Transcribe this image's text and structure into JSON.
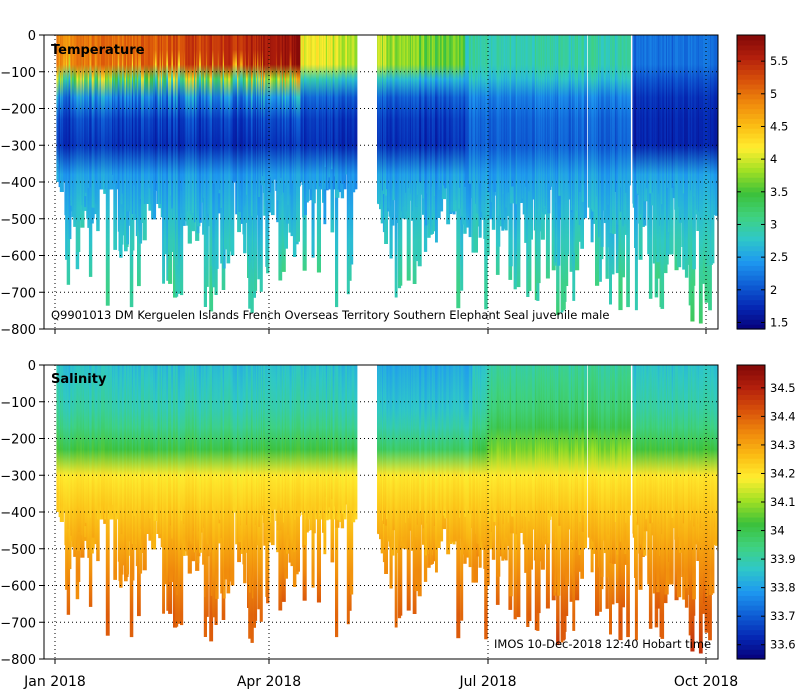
{
  "chart_data": [
    {
      "type": "heatmap",
      "title": "Temperature",
      "annotation": "Q9901013 DM Kerguelen Islands French Overseas Territory Southern Elephant Seal juvenile male",
      "ylim": [
        -800,
        0
      ],
      "yticks": [
        0,
        -100,
        -200,
        -300,
        -400,
        -500,
        -600,
        -700,
        -800
      ],
      "ytick_labels": [
        "0",
        "−100",
        "−200",
        "−300",
        "−400",
        "−500",
        "−600",
        "−700",
        "−800"
      ],
      "colorbar": {
        "range": [
          1.4,
          5.9
        ],
        "ticks": [
          1.5,
          2,
          2.5,
          3,
          3.5,
          4,
          4.5,
          5,
          5.5
        ],
        "tick_labels": [
          "1.5",
          "2",
          "2.5",
          "3",
          "3.5",
          "4",
          "4.5",
          "5",
          "5.5"
        ]
      },
      "profile_gaps": [
        [
          1.04,
          1.06
        ],
        [
          1.31,
          1.33
        ],
        [
          1.55,
          1.57
        ],
        [
          1.75,
          1.77
        ],
        [
          2.05,
          2.07
        ],
        [
          2.28,
          2.3
        ],
        [
          2.52,
          2.54
        ],
        [
          2.75,
          2.76
        ],
        [
          3.08,
          3.1
        ],
        [
          3.41,
          3.45
        ],
        [
          3.62,
          3.64
        ],
        [
          3.8,
          3.82
        ],
        [
          4.2,
          4.5
        ],
        [
          4.72,
          4.74
        ],
        [
          5.08,
          5.1
        ],
        [
          5.3,
          5.32
        ],
        [
          5.55,
          5.57
        ],
        [
          5.72,
          5.74
        ],
        [
          6.1,
          6.12
        ],
        [
          6.35,
          6.37
        ],
        [
          6.6,
          6.62
        ],
        [
          6.85,
          6.87
        ],
        [
          7.1,
          7.12
        ],
        [
          7.35,
          7.37
        ],
        [
          7.58,
          7.6
        ],
        [
          7.8,
          7.82
        ],
        [
          7.95,
          8.0
        ],
        [
          8.25,
          8.27
        ],
        [
          8.6,
          8.62
        ],
        [
          8.85,
          8.87
        ],
        [
          9.1,
          9.12
        ]
      ],
      "profile_depth_steps": [
        [
          0.0,
          400
        ],
        [
          0.15,
          580
        ],
        [
          0.35,
          500
        ],
        [
          0.6,
          420
        ],
        [
          0.9,
          560
        ],
        [
          1.2,
          460
        ],
        [
          1.5,
          680
        ],
        [
          1.8,
          520
        ],
        [
          2.1,
          640
        ],
        [
          2.4,
          560
        ],
        [
          2.7,
          700
        ],
        [
          2.9,
          450
        ],
        [
          3.2,
          560
        ],
        [
          3.4,
          480
        ],
        [
          3.5,
          420
        ],
        [
          4.5,
          520
        ],
        [
          4.7,
          480
        ],
        [
          5.0,
          600
        ],
        [
          5.3,
          480
        ],
        [
          5.6,
          560
        ],
        [
          6.0,
          500
        ],
        [
          6.3,
          650
        ],
        [
          6.6,
          520
        ],
        [
          6.9,
          720
        ],
        [
          7.2,
          540
        ],
        [
          7.5,
          620
        ],
        [
          7.8,
          500
        ],
        [
          8.2,
          680
        ],
        [
          8.5,
          600
        ],
        [
          8.8,
          720
        ],
        [
          9.1,
          540
        ],
        [
          9.3,
          640
        ],
        [
          9.4,
          500
        ]
      ]
    },
    {
      "type": "heatmap",
      "title": "Salinity",
      "annotation": "IMOS 10-Dec-2018 12:40 Hobart time",
      "ylim": [
        -800,
        0
      ],
      "yticks": [
        0,
        -100,
        -200,
        -300,
        -400,
        -500,
        -600,
        -700,
        -800
      ],
      "ytick_labels": [
        "0",
        "−100",
        "−200",
        "−300",
        "−400",
        "−500",
        "−600",
        "−700",
        "−800"
      ],
      "colorbar": {
        "range": [
          33.55,
          34.58
        ],
        "ticks": [
          33.6,
          33.7,
          33.8,
          33.9,
          34,
          34.1,
          34.2,
          34.3,
          34.4,
          34.5
        ],
        "tick_labels": [
          "33.6",
          "33.7",
          "33.8",
          "33.9",
          "34",
          "34.1",
          "34.2",
          "34.3",
          "34.4",
          "34.5"
        ]
      }
    }
  ],
  "x_axis": {
    "range_months": [
      0,
      9.45
    ],
    "ticks": [
      0,
      3,
      6,
      9
    ],
    "tick_labels": [
      "Jan 2018",
      "Apr 2018",
      "Jul 2018",
      "Oct 2018"
    ]
  },
  "colors": {
    "colormap": [
      "#07007a",
      "#0528b4",
      "#0f60d6",
      "#1e99f0",
      "#2fc8c8",
      "#3fd27e",
      "#3cc03a",
      "#9fe024",
      "#ffee30",
      "#fbbd14",
      "#f08a0c",
      "#d9520a",
      "#b4200c",
      "#820808"
    ],
    "axis": "#000000",
    "grid": "#000000"
  }
}
